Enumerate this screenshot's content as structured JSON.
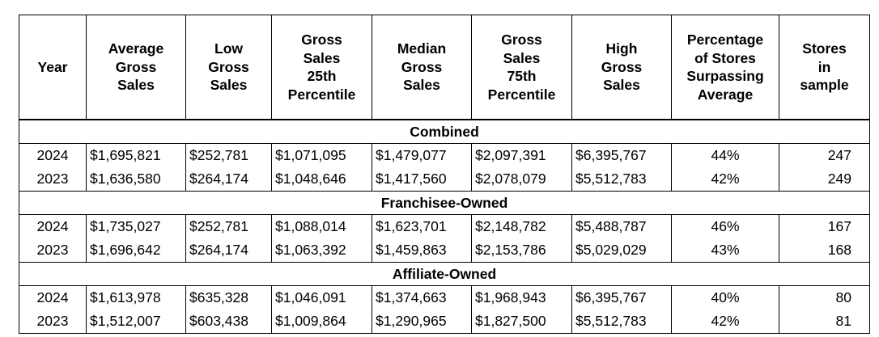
{
  "headers": [
    "Year",
    "Average\nGross\nSales",
    "Low\nGross\nSales",
    "Gross\nSales\n25th\nPercentile",
    "Median\nGross\nSales",
    "Gross\nSales\n75th\nPercentile",
    "High\nGross\nSales",
    "Percentage\nof Stores\nSurpassing\nAverage",
    "Stores\nin\nsample"
  ],
  "sections": [
    {
      "title": "Combined",
      "rows": [
        [
          "2024",
          "$1,695,821",
          "$252,781",
          "$1,071,095",
          "$1,479,077",
          "$2,097,391",
          "$6,395,767",
          "44%",
          "247"
        ],
        [
          "2023",
          "$1,636,580",
          "$264,174",
          "$1,048,646",
          "$1,417,560",
          "$2,078,079",
          "$5,512,783",
          "42%",
          "249"
        ]
      ]
    },
    {
      "title": "Franchisee-Owned",
      "rows": [
        [
          "2024",
          "$1,735,027",
          "$252,781",
          "$1,088,014",
          "$1,623,701",
          "$2,148,782",
          "$5,488,787",
          "46%",
          "167"
        ],
        [
          "2023",
          "$1,696,642",
          "$264,174",
          "$1,063,392",
          "$1,459,863",
          "$2,153,786",
          "$5,029,029",
          "43%",
          "168"
        ]
      ]
    },
    {
      "title": "Affiliate-Owned",
      "rows": [
        [
          "2024",
          "$1,613,978",
          "$635,328",
          "$1,046,091",
          "$1,374,663",
          "$1,968,943",
          "$6,395,767",
          "40%",
          "80"
        ],
        [
          "2023",
          "$1,512,007",
          "$603,438",
          "$1,009,864",
          "$1,290,965",
          "$1,827,500",
          "$5,512,783",
          "42%",
          "81"
        ]
      ]
    }
  ]
}
